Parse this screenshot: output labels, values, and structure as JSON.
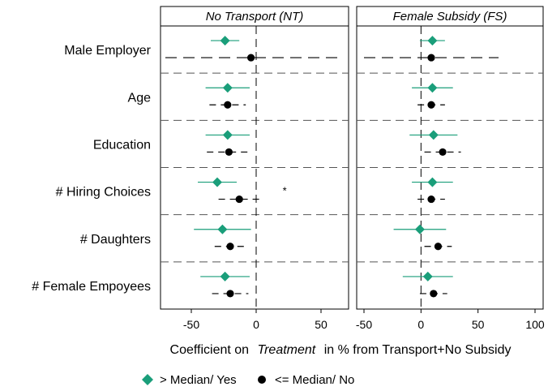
{
  "chart_data": {
    "type": "scatter",
    "subtype": "coefficient-plot",
    "xlabel_prefix": "Coefficient on",
    "xlabel_italic": "Treatment",
    "xlabel_suffix": "in % from Transport+No Subsidy",
    "categories": [
      "Male Employer",
      "Age",
      "Education",
      "# Hiring Choices",
      "# Daughters",
      "# Female Empoyees"
    ],
    "legend": {
      "position": "bottom",
      "above_label": "> Median/ Yes",
      "below_label": "<= Median/ No"
    },
    "colors": {
      "above": "#1a9e7a",
      "below": "#000000"
    },
    "significance_marker": "*",
    "panels": [
      {
        "title": "No Transport (NT)",
        "xlim": [
          -75,
          75
        ],
        "xticks": [
          -50,
          0,
          50
        ],
        "series": [
          {
            "name": "> Median/ Yes",
            "estimate": [
              -24,
              -22,
              -22,
              -30,
              -26,
              -24
            ],
            "ci_low": [
              -35,
              -39,
              -39,
              -45,
              -48,
              -43
            ],
            "ci_high": [
              -13,
              -5,
              -5,
              -15,
              -4,
              -5
            ]
          },
          {
            "name": "<= Median/ No",
            "estimate": [
              -4,
              -22,
              -21,
              -13,
              -20,
              -20
            ],
            "ci_low": [
              -70,
              -36,
              -38,
              -29,
              -32,
              -34
            ],
            "ci_high": [
              64,
              -8,
              -4,
              4,
              -8,
              -6
            ]
          }
        ],
        "annotations": [
          {
            "category": "# Hiring Choices",
            "x": 22,
            "text": "*"
          }
        ]
      },
      {
        "title": "Female Subsidy (FS)",
        "xlim": [
          -75,
          105
        ],
        "xticks": [
          -50,
          0,
          50,
          100
        ],
        "series": [
          {
            "name": "> Median/ Yes",
            "estimate": [
              10,
              10,
              11,
              10,
              -1,
              6
            ],
            "ci_low": [
              -1,
              -8,
              -10,
              -8,
              -24,
              -16
            ],
            "ci_high": [
              21,
              28,
              32,
              28,
              22,
              28
            ]
          },
          {
            "name": "<= Median/ No",
            "estimate": [
              9,
              9,
              19,
              9,
              15,
              11
            ],
            "ci_low": [
              -50,
              -3,
              3,
              -3,
              3,
              -1
            ],
            "ci_high": [
              68,
              21,
              35,
              21,
              27,
              23
            ]
          }
        ],
        "annotations": []
      }
    ]
  }
}
